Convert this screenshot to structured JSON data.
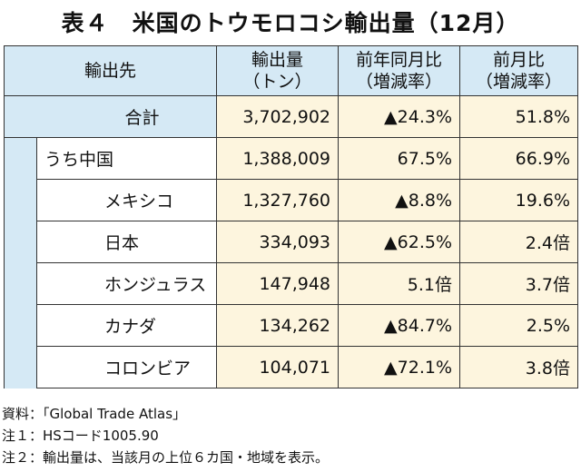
{
  "title": "表４　米国のトウモロコシ輸出量（12月）",
  "table": {
    "headers": [
      "輸出先",
      "輸出量\n（トン）",
      "前年同月比\n（増減率）",
      "前月比\n（増減率）"
    ],
    "header_lines": {
      "dest": "輸出先",
      "qty_1": "輸出量",
      "qty_2": "（トン）",
      "yoy_1": "前年同月比",
      "yoy_2": "（増減率）",
      "mom_1": "前月比",
      "mom_2": "（増減率）"
    },
    "rows": [
      {
        "name": "合計",
        "qty": "3,702,902",
        "yoy": "▲24.3%",
        "mom": "51.8%"
      },
      {
        "name": "うち中国",
        "qty": "1,388,009",
        "yoy": "67.5%",
        "mom": "66.9%"
      },
      {
        "name": "メキシコ",
        "qty": "1,327,760",
        "yoy": "▲8.8%",
        "mom": "19.6%"
      },
      {
        "name": "日本",
        "qty": "334,093",
        "yoy": "▲62.5%",
        "mom": "2.4倍"
      },
      {
        "name": "ホンジュラス",
        "qty": "147,948",
        "yoy": "5.1倍",
        "mom": "3.7倍"
      },
      {
        "name": "カナダ",
        "qty": "134,262",
        "yoy": "▲84.7%",
        "mom": "2.5%"
      },
      {
        "name": "コロンビア",
        "qty": "104,071",
        "yoy": "▲72.1%",
        "mom": "3.8倍"
      }
    ]
  },
  "notes": [
    "資料：「Global Trade Atlas」",
    "注１：HSコード1005.90",
    "注２：輸出量は、当該月の上位６カ国・地域を表示。"
  ],
  "colors": {
    "header_bg": "#d5e9f5",
    "value_bg": "#fdf5de"
  }
}
